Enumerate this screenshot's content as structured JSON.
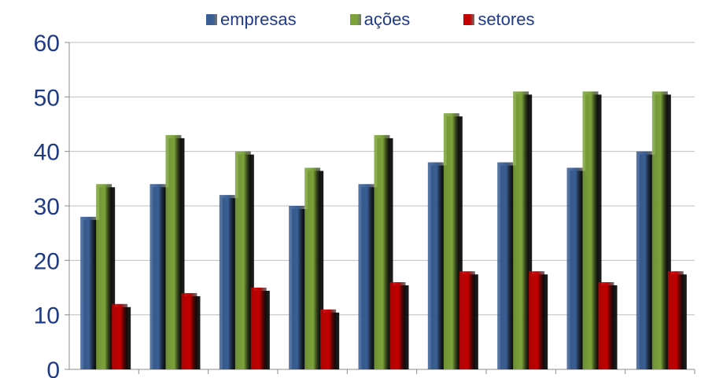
{
  "chart_data": {
    "type": "bar",
    "categories": [
      "",
      "",
      "",
      "",
      "",
      "",
      "",
      "",
      ""
    ],
    "series": [
      {
        "name": "empresas",
        "values": [
          28,
          34,
          32,
          30,
          34,
          38,
          38,
          37,
          40
        ],
        "color": "#3a5f95"
      },
      {
        "name": "ações",
        "values": [
          34,
          43,
          40,
          37,
          43,
          47,
          51,
          51,
          51
        ],
        "color": "#7ca33a"
      },
      {
        "name": "setores",
        "values": [
          12,
          14,
          15,
          11,
          16,
          18,
          18,
          16,
          18
        ],
        "color": "#c40000"
      }
    ],
    "yticks": [
      "0",
      "10",
      "20",
      "30",
      "40",
      "50",
      "60"
    ],
    "ylim": [
      0,
      60
    ],
    "grid": true,
    "legend_position": "top",
    "title": "",
    "xlabel": "",
    "ylabel": ""
  }
}
